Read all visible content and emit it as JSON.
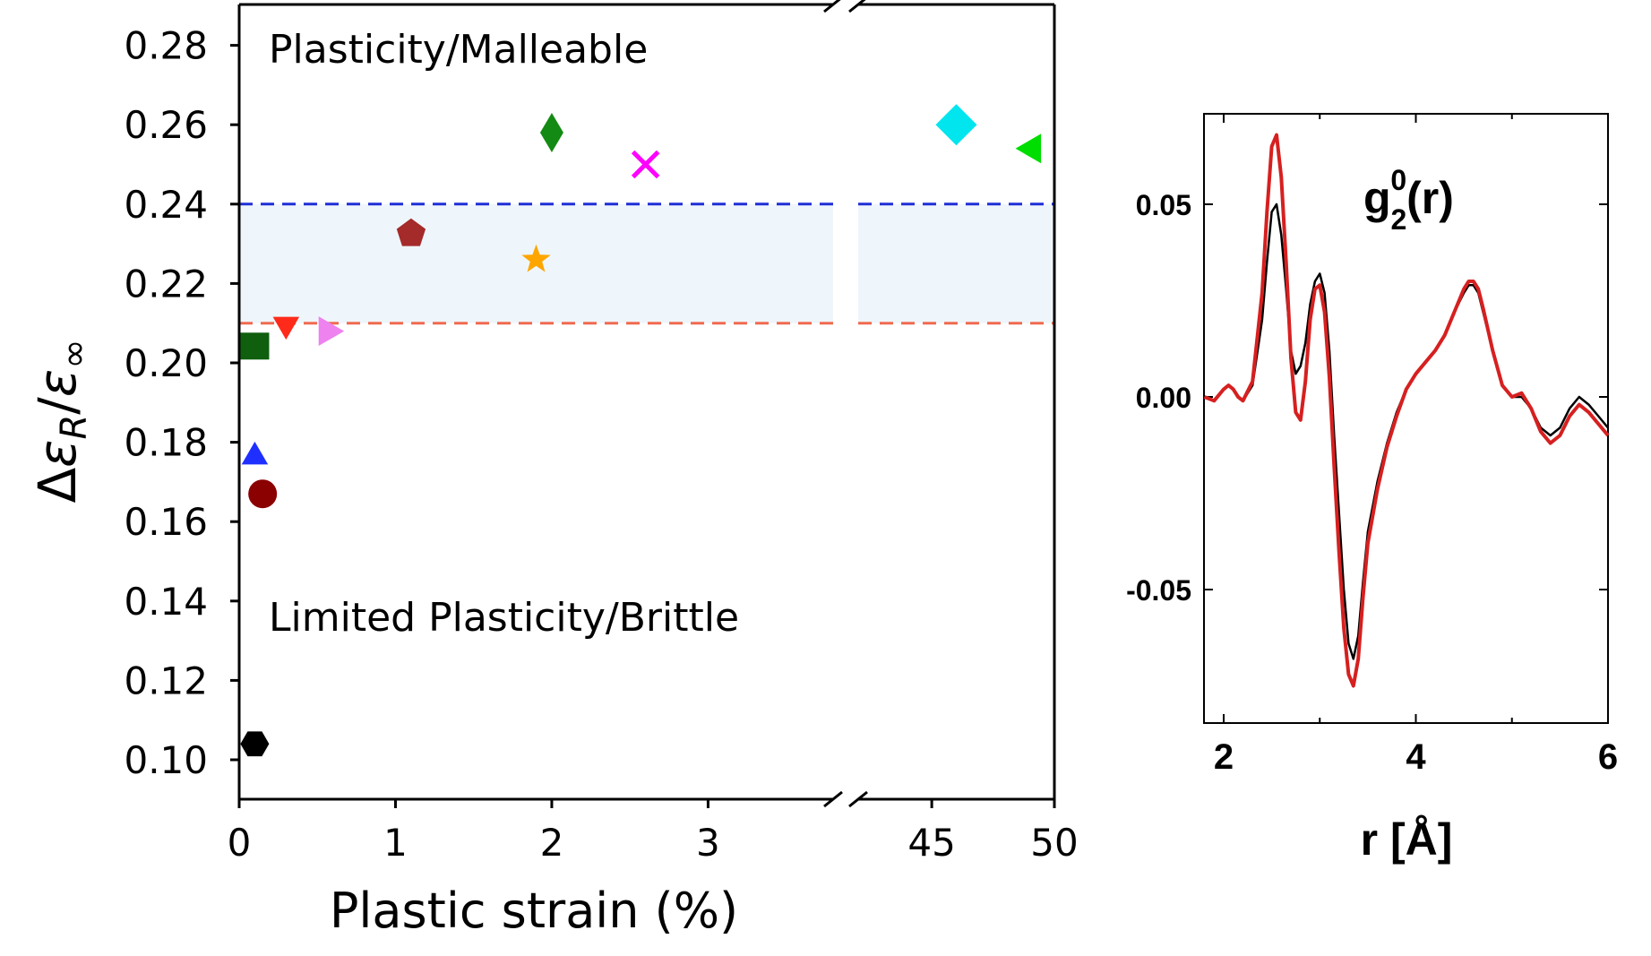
{
  "chart_data": [
    {
      "type": "scatter",
      "xlabel": "Plastic strain (%)",
      "ylabel": "Δε_R/ε_∞",
      "ylabel_parts": {
        "delta": "Δ",
        "eps": "ε",
        "sub_R": "R",
        "slash": "/",
        "sub_inf": "∞"
      },
      "ylim": [
        0.09,
        0.29
      ],
      "yticks": [
        "0.10",
        "0.12",
        "0.14",
        "0.16",
        "0.18",
        "0.20",
        "0.22",
        "0.24",
        "0.26",
        "0.28"
      ],
      "x_axis_broken": true,
      "x_segments": [
        {
          "range": [
            0,
            3.8
          ],
          "ticks": [
            "0",
            "1",
            "2",
            "3"
          ]
        },
        {
          "range": [
            42,
            50
          ],
          "ticks": [
            "45",
            "50"
          ]
        }
      ],
      "annotations": [
        "Plasticity/Malleable",
        "Limited Plasticity/Brittle"
      ],
      "band": {
        "lower": 0.21,
        "upper": 0.24,
        "fill": "#eef6fc",
        "upper_color": "#1f2fd6",
        "lower_color": "#f06a50"
      },
      "points": [
        {
          "x": 0.1,
          "y": 0.104,
          "marker": "hexagon",
          "color": "#000000"
        },
        {
          "x": 0.15,
          "y": 0.167,
          "marker": "circle",
          "color": "#8b0000"
        },
        {
          "x": 0.1,
          "y": 0.177,
          "marker": "triangle-up",
          "color": "#1f2fff"
        },
        {
          "x": 0.1,
          "y": 0.204,
          "marker": "square",
          "color": "#0f5f0f"
        },
        {
          "x": 0.3,
          "y": 0.209,
          "marker": "triangle-down",
          "color": "#ff2a1a"
        },
        {
          "x": 0.58,
          "y": 0.208,
          "marker": "triangle-right",
          "color": "#ee82ee"
        },
        {
          "x": 1.1,
          "y": 0.233,
          "marker": "pentagon",
          "color": "#a52a2a"
        },
        {
          "x": 1.9,
          "y": 0.226,
          "marker": "star",
          "color": "#ffa500"
        },
        {
          "x": 2.0,
          "y": 0.258,
          "marker": "thin-diamond",
          "color": "#138a13"
        },
        {
          "x": 2.6,
          "y": 0.25,
          "marker": "x",
          "color": "#ff00ff"
        },
        {
          "x": 46,
          "y": 0.26,
          "marker": "diamond",
          "color": "#00e5ee"
        },
        {
          "x": 49,
          "y": 0.254,
          "marker": "triangle-left",
          "color": "#00dd00"
        }
      ]
    },
    {
      "type": "line",
      "title": "g(r)",
      "title_parts": {
        "base": "g",
        "sup": "0",
        "sub": "2",
        "arg": "(r)"
      },
      "xlabel": "r [Å]",
      "xlim": [
        1.8,
        6.0
      ],
      "ylim": [
        -0.084,
        0.074
      ],
      "xticks": [
        "2",
        "4",
        "6"
      ],
      "yticks": [
        "-0.05",
        "0.00",
        "0.05"
      ],
      "series": [
        {
          "color": "#000000",
          "x": [
            1.8,
            1.9,
            2.0,
            2.05,
            2.1,
            2.15,
            2.2,
            2.3,
            2.4,
            2.45,
            2.5,
            2.55,
            2.6,
            2.65,
            2.7,
            2.75,
            2.8,
            2.85,
            2.9,
            2.95,
            3.0,
            3.05,
            3.1,
            3.15,
            3.2,
            3.25,
            3.3,
            3.35,
            3.4,
            3.45,
            3.5,
            3.6,
            3.7,
            3.8,
            3.9,
            4.0,
            4.1,
            4.2,
            4.3,
            4.4,
            4.5,
            4.55,
            4.6,
            4.65,
            4.7,
            4.8,
            4.9,
            5.0,
            5.1,
            5.2,
            5.3,
            5.4,
            5.5,
            5.6,
            5.7,
            5.8,
            5.9,
            6.0
          ],
          "y": [
            0.0,
            -0.001,
            0.002,
            0.003,
            0.002,
            0.0,
            -0.001,
            0.003,
            0.02,
            0.035,
            0.048,
            0.05,
            0.042,
            0.028,
            0.012,
            0.006,
            0.008,
            0.014,
            0.024,
            0.03,
            0.032,
            0.027,
            0.012,
            -0.01,
            -0.03,
            -0.05,
            -0.064,
            -0.068,
            -0.062,
            -0.048,
            -0.035,
            -0.022,
            -0.012,
            -0.004,
            0.002,
            0.006,
            0.009,
            0.012,
            0.016,
            0.022,
            0.027,
            0.029,
            0.029,
            0.027,
            0.022,
            0.012,
            0.003,
            0.0,
            0.0,
            -0.003,
            -0.008,
            -0.01,
            -0.008,
            -0.003,
            0.0,
            -0.002,
            -0.005,
            -0.008
          ]
        },
        {
          "color": "#d62020",
          "x": [
            1.8,
            1.9,
            2.0,
            2.05,
            2.1,
            2.15,
            2.2,
            2.3,
            2.4,
            2.45,
            2.5,
            2.55,
            2.6,
            2.65,
            2.7,
            2.75,
            2.8,
            2.85,
            2.9,
            2.95,
            3.0,
            3.05,
            3.1,
            3.15,
            3.2,
            3.25,
            3.3,
            3.35,
            3.4,
            3.45,
            3.5,
            3.6,
            3.7,
            3.8,
            3.9,
            4.0,
            4.1,
            4.2,
            4.3,
            4.4,
            4.5,
            4.55,
            4.6,
            4.65,
            4.7,
            4.8,
            4.9,
            5.0,
            5.1,
            5.2,
            5.3,
            5.4,
            5.5,
            5.6,
            5.7,
            5.8,
            5.9,
            6.0
          ],
          "y": [
            0.0,
            -0.001,
            0.002,
            0.003,
            0.002,
            0.0,
            -0.001,
            0.004,
            0.027,
            0.048,
            0.065,
            0.068,
            0.057,
            0.035,
            0.01,
            -0.004,
            -0.006,
            0.004,
            0.02,
            0.028,
            0.029,
            0.022,
            0.005,
            -0.018,
            -0.04,
            -0.06,
            -0.072,
            -0.075,
            -0.068,
            -0.052,
            -0.038,
            -0.024,
            -0.013,
            -0.005,
            0.002,
            0.006,
            0.009,
            0.012,
            0.016,
            0.022,
            0.028,
            0.03,
            0.03,
            0.028,
            0.023,
            0.012,
            0.003,
            0.0,
            0.001,
            -0.003,
            -0.009,
            -0.012,
            -0.01,
            -0.005,
            -0.002,
            -0.004,
            -0.007,
            -0.01
          ]
        }
      ]
    }
  ]
}
